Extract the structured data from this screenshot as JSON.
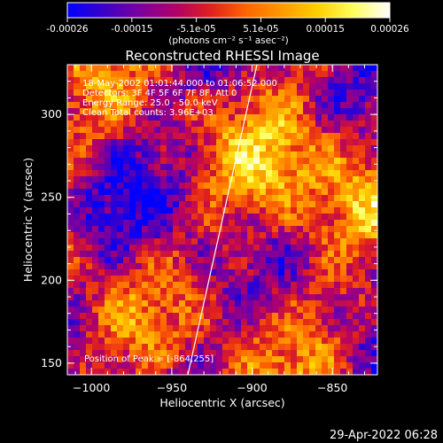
{
  "colorbar": {
    "ticks": [
      "-0.00026",
      "-0.00015",
      "-5.1e-05",
      "5.1e-05",
      "0.00015",
      "0.00026"
    ],
    "units": "(photons cm⁻² s⁻¹ asec⁻²)",
    "stops": [
      "#0000ff",
      "#3a00c8",
      "#7a00a0",
      "#b0006a",
      "#e0201e",
      "#ff6600",
      "#ff9a00",
      "#ffd000",
      "#ffff60",
      "#ffffff"
    ]
  },
  "annotations": {
    "time": "18-May-2002 01:01:44.000 to 01:06:52.000",
    "detectors": "Detectors: 3F 4F 5F 6F 7F 8F, Att 0",
    "energy": "Energy Range: 25.0 - 50.0 keV",
    "clean": "Clean    Total counts: 3.96E+03",
    "peak": "Position of Peak = [-864,255]"
  },
  "timestamp": "29-Apr-2022 06:28",
  "chart_data": {
    "type": "heatmap",
    "title": "Reconstructed RHESSI Image",
    "xlabel": "Heliocentric X (arcsec)",
    "ylabel": "Heliocentric Y (arcsec)",
    "xlim": [
      -1015,
      -822
    ],
    "ylim": [
      143,
      330
    ],
    "xticks": [
      -1000,
      -950,
      -900,
      -850
    ],
    "yticks": [
      150,
      200,
      250,
      300
    ],
    "xtick_labels": [
      "−1000",
      "−950",
      "−900",
      "−850"
    ],
    "ytick_labels": [
      "150",
      "200",
      "250",
      "300"
    ],
    "colorbar_range": [
      -0.00026,
      0.00026
    ],
    "limb_line": [
      [
        -940,
        143
      ],
      [
        -897,
        330
      ]
    ],
    "peak": [
      -864,
      255
    ]
  }
}
